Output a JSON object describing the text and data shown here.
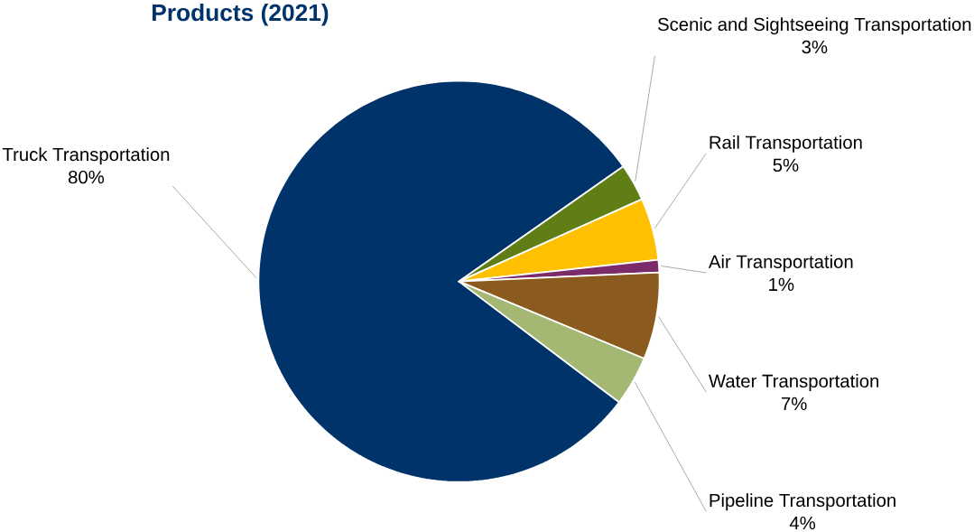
{
  "chart_data": {
    "type": "pie",
    "title": "Products (2021)",
    "categories": [
      "Truck Transportation",
      "Scenic and Sightseeing Transportation",
      "Rail Transportation",
      "Air Transportation",
      "Water Transportation",
      "Pipeline Transportation"
    ],
    "values": [
      80,
      3,
      5,
      1,
      7,
      4
    ],
    "value_labels": [
      "80%",
      "3%",
      "5%",
      "1%",
      "7%",
      "4%"
    ],
    "colors": [
      "#00336a",
      "#5f7f16",
      "#ffc000",
      "#7b2a6a",
      "#8b5a1e",
      "#a4b874"
    ]
  }
}
